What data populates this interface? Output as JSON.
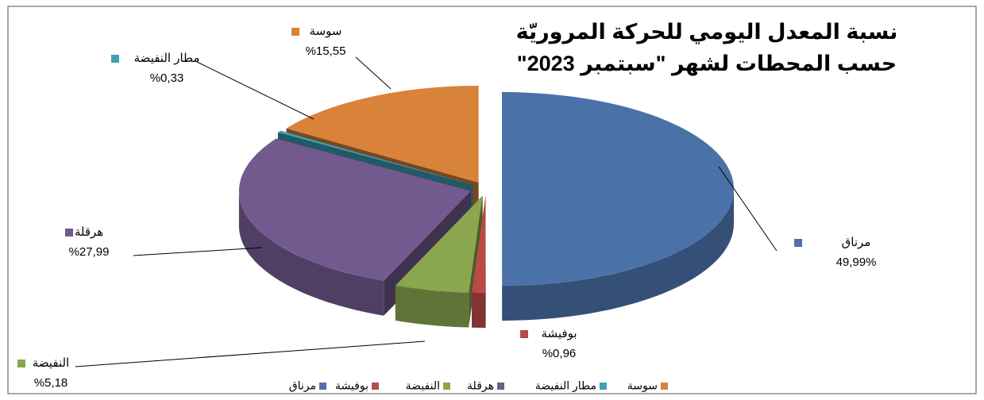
{
  "chart_data": {
    "type": "pie",
    "title": [
      "نسبة المعدل اليومي للحركة المروريّة",
      "حسب المحطات لشهر \"سبتمبر 2023\""
    ],
    "categories": [
      "مرناق",
      "بوفيشة",
      "النفيضة",
      "هرقلة",
      "مطار النفيضة",
      "سوسة"
    ],
    "values": [
      49.99,
      0.96,
      5.18,
      27.99,
      0.33,
      15.55
    ],
    "value_labels": [
      "49,99%",
      "%0,96",
      "%5,18",
      "%27,99",
      "%0,33",
      "%15,55"
    ],
    "colors": [
      "#4a72a8",
      "#b84a47",
      "#8aa64f",
      "#725a8f",
      "#3fa0b8",
      "#d9823a"
    ],
    "legend": "bottom"
  }
}
